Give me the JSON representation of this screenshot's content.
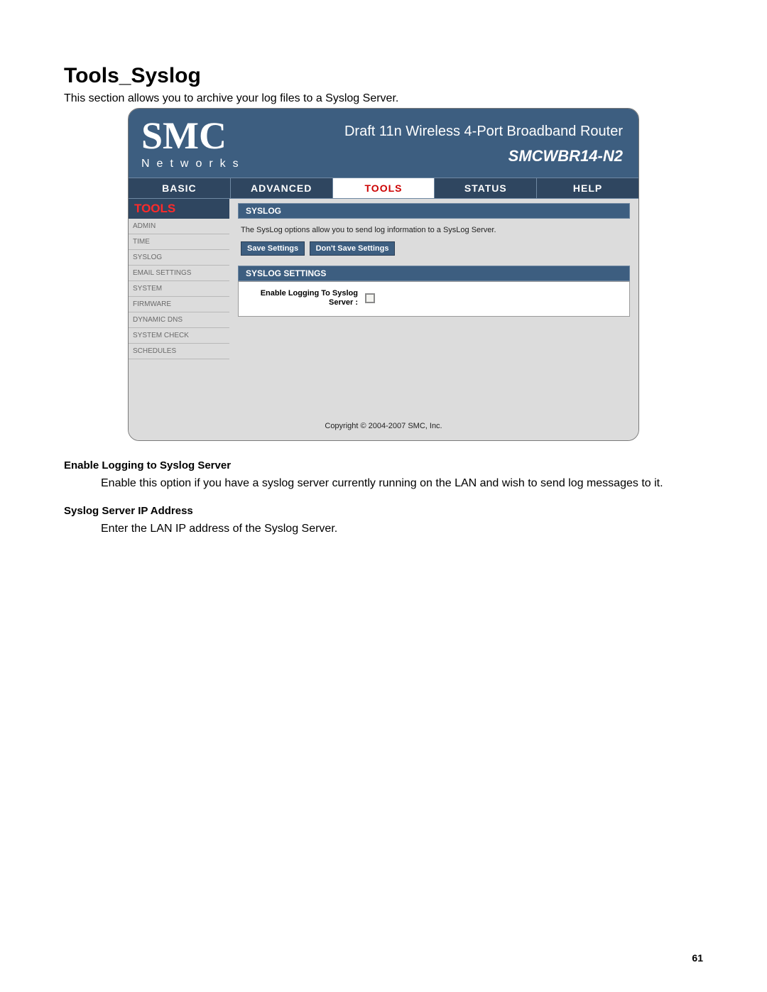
{
  "page": {
    "title": "Tools_Syslog",
    "intro": "This section allows you to archive your log files to a Syslog Server.",
    "number": "61"
  },
  "router": {
    "logo_main": "SMC",
    "logo_sub": "Networks",
    "header_line1": "Draft 11n Wireless 4-Port Broadband Router",
    "header_line2": "SMCWBR14-N2",
    "tabs": {
      "basic": "BASIC",
      "advanced": "ADVANCED",
      "tools": "TOOLS",
      "status": "STATUS",
      "help": "HELP"
    },
    "sidebar": {
      "title": "TOOLS",
      "items": [
        "ADMIN",
        "TIME",
        "SYSLOG",
        "EMAIL SETTINGS",
        "SYSTEM",
        "FIRMWARE",
        "DYNAMIC DNS",
        "SYSTEM CHECK",
        "SCHEDULES"
      ]
    },
    "panel1_title": "SYSLOG",
    "panel1_desc": "The SysLog options allow you to send log information to a SysLog Server.",
    "buttons": {
      "save": "Save Settings",
      "dont_save": "Don't Save Settings"
    },
    "panel2_title": "SYSLOG SETTINGS",
    "setting_label": "Enable Logging To Syslog Server :",
    "copyright": "Copyright © 2004-2007 SMC, Inc."
  },
  "doc": {
    "h1": "Enable Logging to Syslog Server",
    "p1": "Enable this option if you have a syslog server currently running on the LAN and wish to send log messages to it.",
    "h2": "Syslog Server IP Address",
    "p2": "Enter the LAN IP address of the Syslog Server."
  },
  "colors": {
    "header_bg": "#3d5e80",
    "tab_bg": "#2f4660",
    "tab_active_text": "#cc0000",
    "side_title_text": "#ff2a2a",
    "frame_bg": "#dcdcdc"
  }
}
